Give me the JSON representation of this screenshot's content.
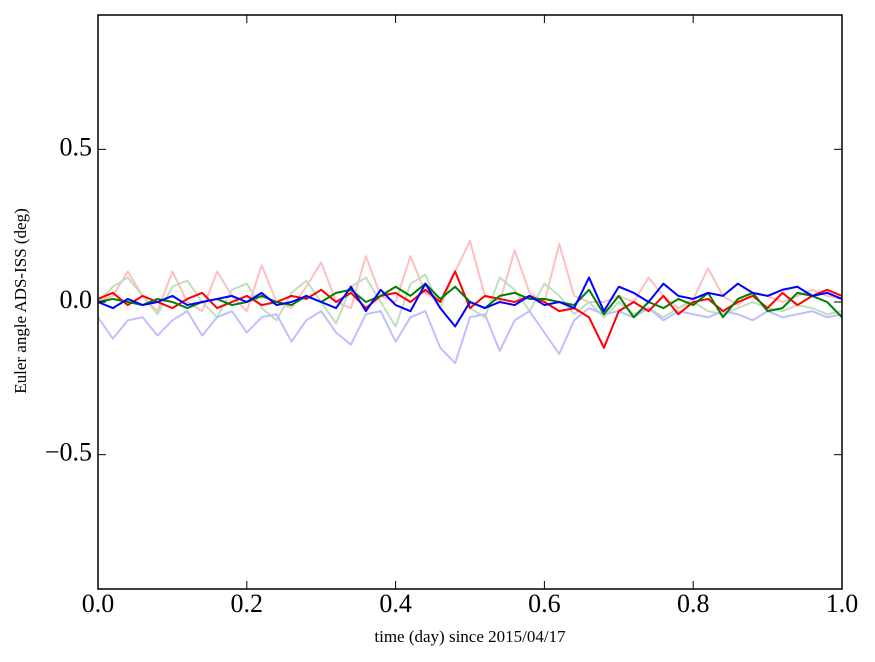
{
  "chart_data": {
    "type": "line",
    "xlabel": "time (day) since 2015/04/17",
    "ylabel": "Euler angle ADS-ISS (deg)",
    "xlim": [
      0,
      1
    ],
    "ylim": [
      -0.94,
      0.94
    ],
    "xticks": [
      {
        "value": 0,
        "label": "0.0"
      },
      0.2,
      0.4,
      0.6,
      0.8,
      {
        "value": 1,
        "label": "1.0"
      }
    ],
    "yticks": [
      {
        "value": -0.5,
        "label": "−0.5"
      },
      {
        "value": 0,
        "label": "0.0"
      },
      0.5
    ],
    "x": [
      0,
      0.02,
      0.04,
      0.06,
      0.08,
      0.1,
      0.12,
      0.14,
      0.16,
      0.18,
      0.2,
      0.22,
      0.24,
      0.26,
      0.28,
      0.3,
      0.32,
      0.34,
      0.36,
      0.38,
      0.4,
      0.42,
      0.44,
      0.46,
      0.48,
      0.5,
      0.52,
      0.54,
      0.56,
      0.58,
      0.6,
      0.62,
      0.64,
      0.66,
      0.68,
      0.7,
      0.72,
      0.74,
      0.76,
      0.78,
      0.8,
      0.82,
      0.84,
      0.86,
      0.88,
      0.9,
      0.92,
      0.94,
      0.96,
      0.98,
      1
    ],
    "series": [
      {
        "color": "#ffbfbf",
        "values": [
          0,
          0.02,
          0.1,
          0.02,
          -0.03,
          0.1,
          0,
          -0.03,
          0.1,
          0.02,
          -0.03,
          0.12,
          0,
          -0.02,
          0.05,
          0.13,
          0,
          -0.02,
          0.15,
          0.02,
          0,
          0.15,
          0.03,
          0,
          0.1,
          0.2,
          0.02,
          0,
          0.17,
          0.03,
          0,
          0.19,
          0.02,
          0,
          0,
          0.02,
          0,
          0.08,
          0.02,
          -0.02,
          0.01,
          0.11,
          0.02,
          -0.01,
          0.03,
          0.02,
          0,
          0.02,
          0.04,
          0.02,
          0.01
        ]
      },
      {
        "color": "#bfdfbf",
        "values": [
          0,
          0.05,
          0.08,
          0.02,
          -0.04,
          0.05,
          0.07,
          0,
          -0.05,
          0.04,
          0.06,
          -0.02,
          -0.06,
          0.03,
          0.07,
          0,
          -0.07,
          0.05,
          0.08,
          0,
          -0.08,
          0.06,
          0.09,
          -0.02,
          0.1,
          -0.02,
          -0.05,
          0.08,
          0.04,
          -0.03,
          0.06,
          0.02,
          -0.04,
          0,
          -0.05,
          0,
          -0.04,
          -0.02,
          -0.05,
          -0.02,
          0,
          -0.03,
          -0.04,
          -0.02,
          0,
          -0.02,
          -0.03,
          -0.01,
          -0.02,
          -0.04,
          -0.03
        ]
      },
      {
        "color": "#bfbfff",
        "values": [
          -0.05,
          -0.12,
          -0.06,
          -0.05,
          -0.11,
          -0.06,
          -0.03,
          -0.11,
          -0.05,
          -0.03,
          -0.1,
          -0.05,
          -0.04,
          -0.13,
          -0.06,
          -0.03,
          -0.1,
          -0.14,
          -0.04,
          -0.03,
          -0.13,
          -0.05,
          -0.03,
          -0.15,
          -0.2,
          -0.05,
          -0.04,
          -0.16,
          -0.06,
          -0.03,
          -0.1,
          -0.17,
          -0.06,
          -0.02,
          -0.04,
          -0.03,
          -0.05,
          -0.02,
          -0.06,
          -0.03,
          -0.04,
          -0.05,
          -0.03,
          -0.04,
          -0.06,
          -0.03,
          -0.05,
          -0.04,
          -0.03,
          -0.05,
          -0.04
        ]
      },
      {
        "color": "#ff0000",
        "values": [
          0.01,
          0.03,
          -0.01,
          0.02,
          0,
          -0.02,
          0.01,
          0.03,
          -0.02,
          0,
          0.02,
          -0.01,
          0,
          0.02,
          0.01,
          0.04,
          0,
          0.03,
          -0.02,
          0.02,
          0.03,
          0,
          0.04,
          0,
          0.1,
          -0.02,
          0.02,
          0.01,
          0,
          0.02,
          0,
          -0.03,
          -0.02,
          -0.05,
          -0.15,
          -0.03,
          0,
          -0.03,
          0.02,
          -0.04,
          0,
          0.01,
          -0.03,
          0,
          0.02,
          -0.02,
          0.03,
          -0.01,
          0.02,
          0.04,
          0.02
        ]
      },
      {
        "color": "#008000",
        "values": [
          0,
          0.01,
          0,
          -0.01,
          0.01,
          0,
          -0.02,
          0,
          0.01,
          -0.01,
          0,
          0.02,
          0,
          -0.01,
          0.02,
          0,
          0.03,
          0.04,
          0,
          0.02,
          0.05,
          0.02,
          0.06,
          0.01,
          0.05,
          0,
          -0.02,
          0.02,
          0.03,
          0.01,
          0.01,
          0,
          -0.01,
          0.04,
          -0.04,
          0.02,
          -0.05,
          0,
          -0.02,
          0.01,
          -0.01,
          0.03,
          -0.05,
          0.01,
          0.03,
          -0.03,
          -0.02,
          0.03,
          0.02,
          0,
          -0.05
        ]
      },
      {
        "color": "#0000ff",
        "values": [
          0,
          -0.02,
          0.01,
          -0.01,
          0,
          0.02,
          -0.01,
          0,
          0.01,
          0.02,
          0,
          0.03,
          -0.01,
          0,
          0.02,
          0,
          -0.02,
          0.05,
          -0.03,
          0.04,
          -0.01,
          -0.03,
          0.06,
          -0.02,
          -0.08,
          0,
          -0.02,
          0,
          -0.01,
          0.02,
          -0.01,
          0,
          -0.02,
          0.08,
          -0.03,
          0.05,
          0.03,
          0,
          0.06,
          0.02,
          0.01,
          0.03,
          0.02,
          0.06,
          0.03,
          0.02,
          0.04,
          0.05,
          0.02,
          0.03,
          0.01
        ]
      }
    ]
  }
}
